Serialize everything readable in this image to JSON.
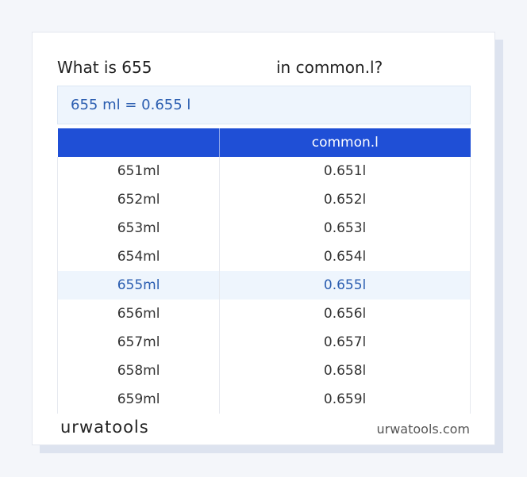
{
  "header": {
    "title_start": "What is 655",
    "title_end": "in common.l?"
  },
  "result": "655 ml = 0.655 l",
  "table": {
    "header": [
      "common.l"
    ],
    "rows": [
      [
        "651ml",
        "0.651l"
      ],
      [
        "652ml",
        "0.652l"
      ],
      [
        "653ml",
        "0.653l"
      ],
      [
        "654ml",
        "0.654l"
      ],
      [
        "655ml",
        "0.655l"
      ],
      [
        "656ml",
        "0.656l"
      ],
      [
        "657ml",
        "0.657l"
      ],
      [
        "658ml",
        "0.658l"
      ],
      [
        "659ml",
        "0.659l"
      ]
    ],
    "highlighted_row": 4
  },
  "footer": {
    "logo": "urwatools",
    "site": "urwatools.com"
  }
}
